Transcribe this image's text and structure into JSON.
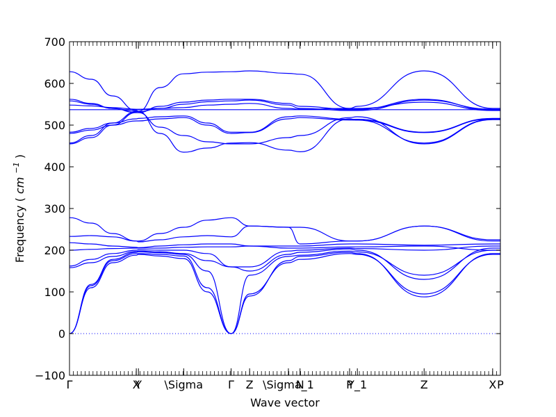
{
  "chart_data": {
    "type": "line",
    "title": "",
    "xlabel": "Wave vector",
    "ylabel": "Frequency",
    "ylabel_unit": "cm",
    "ylabel_unit_exp": "−1",
    "ylim": [
      -100,
      700
    ],
    "yticks": [
      -100,
      0,
      100,
      200,
      300,
      400,
      500,
      600,
      700
    ],
    "ytick_labels": [
      "−100",
      "0",
      "100",
      "200",
      "300",
      "400",
      "500",
      "600",
      "700"
    ],
    "xlim": [
      0,
      1
    ],
    "grid": false,
    "legend": "none",
    "zero_line": {
      "y": 0,
      "style": "dotted"
    },
    "colors": {
      "bands": "#0000ff",
      "axes": "#000000"
    },
    "high_symmetry_points": [
      {
        "label": "Γ",
        "x": 0.0
      },
      {
        "label": "X",
        "x": 0.155
      },
      {
        "label": "Y",
        "x": 0.16
      },
      {
        "label": "\\Sigma",
        "x": 0.265
      },
      {
        "label": "Γ",
        "x": 0.375
      },
      {
        "label": "Z",
        "x": 0.418
      },
      {
        "label": "\\Sigma_1",
        "x": 0.508
      },
      {
        "label": "N",
        "x": 0.535
      },
      {
        "label": "P",
        "x": 0.65
      },
      {
        "label": "Y_1",
        "x": 0.668
      },
      {
        "label": "Z",
        "x": 0.823
      },
      {
        "label": "X",
        "x": 0.982
      },
      {
        "label": "P",
        "x": 1.0
      }
    ],
    "series": [
      {
        "x": [
          0,
          0.05,
          0.1,
          0.155,
          0.16,
          0.21,
          0.265,
          0.32,
          0.375,
          0.418,
          0.508,
          0.535,
          0.65,
          0.668,
          0.823,
          0.982,
          1
        ],
        "y": [
          0,
          110,
          170,
          188,
          190,
          186,
          180,
          100,
          0,
          95,
          170,
          178,
          192,
          190,
          95,
          190,
          190
        ]
      },
      {
        "x": [
          0,
          0.05,
          0.1,
          0.155,
          0.16,
          0.21,
          0.265,
          0.32,
          0.375,
          0.418,
          0.508,
          0.535,
          0.65,
          0.668,
          0.823,
          0.982,
          1
        ],
        "y": [
          0,
          115,
          175,
          192,
          192,
          190,
          186,
          110,
          0,
          90,
          175,
          185,
          195,
          192,
          88,
          192,
          192
        ]
      },
      {
        "x": [
          0,
          0.05,
          0.1,
          0.155,
          0.16,
          0.21,
          0.265,
          0.32,
          0.375,
          0.418,
          0.508,
          0.535,
          0.65,
          0.668,
          0.823,
          0.982,
          1
        ],
        "y": [
          0,
          118,
          178,
          195,
          196,
          194,
          190,
          150,
          0,
          140,
          185,
          188,
          198,
          196,
          140,
          200,
          200
        ]
      },
      {
        "x": [
          0,
          0.05,
          0.1,
          0.155,
          0.16,
          0.21,
          0.265,
          0.32,
          0.375,
          0.418,
          0.508,
          0.535,
          0.65,
          0.668,
          0.823,
          0.982,
          1
        ],
        "y": [
          158,
          170,
          185,
          197,
          198,
          196,
          192,
          175,
          160,
          150,
          190,
          195,
          203,
          200,
          130,
          205,
          205
        ]
      },
      {
        "x": [
          0,
          0.05,
          0.1,
          0.155,
          0.16,
          0.21,
          0.265,
          0.32,
          0.375,
          0.418,
          0.508,
          0.535,
          0.65,
          0.668,
          0.823,
          0.982,
          1
        ],
        "y": [
          162,
          178,
          192,
          200,
          201,
          200,
          200,
          192,
          160,
          160,
          198,
          200,
          205,
          204,
          200,
          210,
          210
        ]
      },
      {
        "x": [
          0,
          0.05,
          0.1,
          0.155,
          0.16,
          0.21,
          0.265,
          0.32,
          0.375,
          0.418,
          0.508,
          0.535,
          0.65,
          0.668,
          0.823,
          0.982,
          1
        ],
        "y": [
          200,
          202,
          204,
          205,
          205,
          205,
          207,
          208,
          208,
          210,
          205,
          205,
          208,
          208,
          210,
          200,
          200
        ]
      },
      {
        "x": [
          0,
          0.05,
          0.1,
          0.155,
          0.16,
          0.21,
          0.265,
          0.32,
          0.375,
          0.418,
          0.508,
          0.535,
          0.65,
          0.668,
          0.823,
          0.982,
          1
        ],
        "y": [
          218,
          215,
          210,
          207,
          206,
          210,
          213,
          215,
          215,
          210,
          210,
          210,
          215,
          215,
          212,
          215,
          215
        ]
      },
      {
        "x": [
          0,
          0.05,
          0.1,
          0.155,
          0.16,
          0.21,
          0.265,
          0.32,
          0.375,
          0.418,
          0.508,
          0.535,
          0.65,
          0.668,
          0.823,
          0.982,
          1
        ],
        "y": [
          233,
          235,
          232,
          222,
          220,
          225,
          232,
          235,
          232,
          258,
          255,
          215,
          222,
          222,
          258,
          222,
          222
        ]
      },
      {
        "x": [
          0,
          0.05,
          0.1,
          0.155,
          0.16,
          0.21,
          0.265,
          0.32,
          0.375,
          0.418,
          0.508,
          0.535,
          0.65,
          0.668,
          0.823,
          0.982,
          1
        ],
        "y": [
          278,
          265,
          240,
          222,
          222,
          240,
          255,
          272,
          278,
          258,
          255,
          255,
          222,
          222,
          258,
          225,
          225
        ]
      },
      {
        "x": [
          0,
          0.05,
          0.1,
          0.155,
          0.16,
          0.21,
          0.265,
          0.32,
          0.375,
          0.418,
          0.508,
          0.535,
          0.65,
          0.668,
          0.823,
          0.982,
          1
        ],
        "y": [
          455,
          470,
          500,
          530,
          530,
          495,
          475,
          460,
          455,
          455,
          470,
          475,
          518,
          520,
          455,
          513,
          513
        ]
      },
      {
        "x": [
          0,
          0.05,
          0.1,
          0.155,
          0.16,
          0.21,
          0.265,
          0.32,
          0.375,
          0.418,
          0.508,
          0.535,
          0.65,
          0.668,
          0.823,
          0.982,
          1
        ],
        "y": [
          457,
          475,
          505,
          532,
          533,
          480,
          435,
          445,
          457,
          458,
          440,
          436,
          515,
          512,
          457,
          514,
          514
        ]
      },
      {
        "x": [
          0,
          0.05,
          0.1,
          0.155,
          0.16,
          0.21,
          0.265,
          0.32,
          0.375,
          0.418,
          0.508,
          0.535,
          0.65,
          0.668,
          0.823,
          0.982,
          1
        ],
        "y": [
          480,
          488,
          500,
          510,
          510,
          515,
          518,
          500,
          480,
          482,
          515,
          518,
          512,
          512,
          482,
          515,
          515
        ]
      },
      {
        "x": [
          0,
          0.05,
          0.1,
          0.155,
          0.16,
          0.21,
          0.265,
          0.32,
          0.375,
          0.418,
          0.508,
          0.535,
          0.65,
          0.668,
          0.823,
          0.982,
          1
        ],
        "y": [
          483,
          492,
          505,
          515,
          516,
          520,
          522,
          505,
          483,
          483,
          520,
          522,
          514,
          514,
          483,
          516,
          516
        ]
      },
      {
        "x": [
          0,
          0.05,
          0.1,
          0.155,
          0.16,
          0.21,
          0.265,
          0.32,
          0.375,
          0.418,
          0.508,
          0.535,
          0.65,
          0.668,
          0.823,
          0.982,
          1
        ],
        "y": [
          537,
          537,
          537,
          537,
          537,
          537,
          537,
          537,
          537,
          537,
          537,
          537,
          537,
          537,
          537,
          537,
          537
        ]
      },
      {
        "x": [
          0,
          0.05,
          0.1,
          0.155,
          0.16,
          0.21,
          0.265,
          0.32,
          0.375,
          0.418,
          0.508,
          0.535,
          0.65,
          0.668,
          0.823,
          0.982,
          1
        ],
        "y": [
          548,
          546,
          542,
          538,
          538,
          540,
          542,
          548,
          550,
          552,
          540,
          538,
          540,
          540,
          555,
          535,
          535
        ]
      },
      {
        "x": [
          0,
          0.05,
          0.1,
          0.155,
          0.16,
          0.21,
          0.265,
          0.32,
          0.375,
          0.418,
          0.508,
          0.535,
          0.65,
          0.668,
          0.823,
          0.982,
          1
        ],
        "y": [
          558,
          550,
          540,
          533,
          532,
          540,
          550,
          556,
          558,
          560,
          548,
          540,
          535,
          535,
          560,
          538,
          538
        ]
      },
      {
        "x": [
          0,
          0.05,
          0.1,
          0.155,
          0.16,
          0.21,
          0.265,
          0.32,
          0.375,
          0.418,
          0.508,
          0.535,
          0.65,
          0.668,
          0.823,
          0.982,
          1
        ],
        "y": [
          562,
          552,
          540,
          530,
          530,
          545,
          555,
          560,
          562,
          562,
          552,
          545,
          538,
          538,
          562,
          536,
          536
        ]
      },
      {
        "x": [
          0,
          0.05,
          0.1,
          0.155,
          0.16,
          0.21,
          0.265,
          0.32,
          0.375,
          0.418,
          0.508,
          0.535,
          0.65,
          0.668,
          0.823,
          0.982,
          1
        ],
        "y": [
          628,
          610,
          570,
          535,
          533,
          590,
          623,
          627,
          628,
          630,
          624,
          622,
          540,
          545,
          630,
          540,
          540
        ]
      }
    ]
  }
}
